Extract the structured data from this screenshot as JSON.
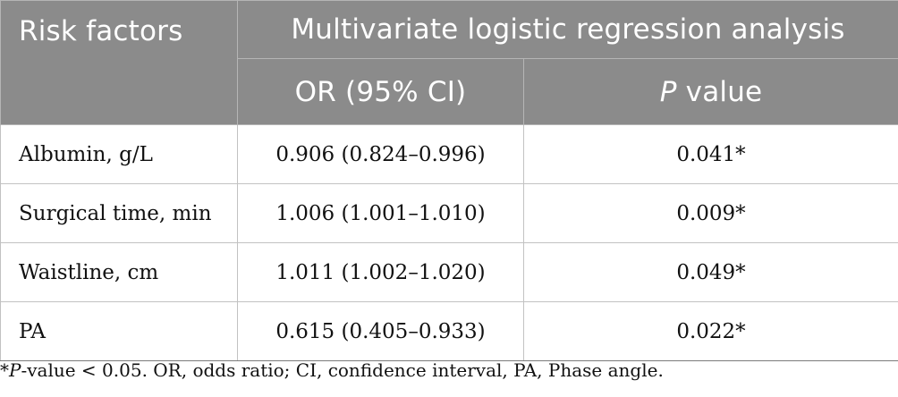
{
  "header": {
    "risk_factors": "Risk factors",
    "analysis": "Multivariate logistic regression analysis",
    "or_ci": "OR (95% CI)",
    "p_italic": "P",
    "p_rest": " value"
  },
  "rows": [
    {
      "factor": "Albumin, g/L",
      "or": "0.906 (0.824–0.996)",
      "p": "0.041*"
    },
    {
      "factor": "Surgical time, min",
      "or": "1.006 (1.001–1.010)",
      "p": "0.009*"
    },
    {
      "factor": "Waistline, cm",
      "or": "1.011 (1.002–1.020)",
      "p": "0.049*"
    },
    {
      "factor": "PA",
      "or": "0.615 (0.405–0.933)",
      "p": "0.022*"
    }
  ],
  "footnote": {
    "star": "*",
    "p_italic": "P",
    "rest": "-value < 0.05. OR, odds ratio; CI, confidence interval, PA, Phase angle."
  }
}
